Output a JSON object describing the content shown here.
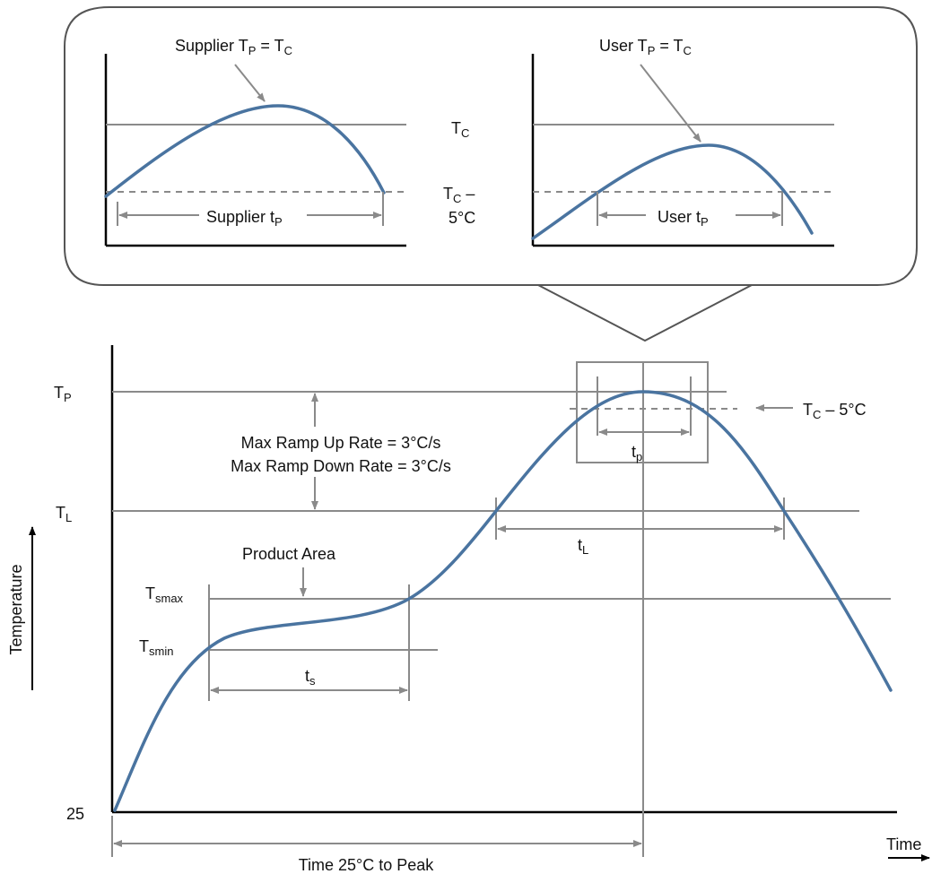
{
  "colors": {
    "curve": "#4a74a0",
    "reference_line": "#8a8a8a",
    "axis": "#000000",
    "callout_border": "#555555"
  },
  "callout": {
    "supplier": {
      "title": {
        "base": "Supplier T",
        "sub1": "P",
        "mid": " = T",
        "sub2": "C"
      },
      "duration": {
        "base": "Supplier t",
        "sub": "P"
      }
    },
    "user": {
      "title": {
        "base": "User T",
        "sub1": "P",
        "mid": " = T",
        "sub2": "C"
      },
      "duration": {
        "base": "User t",
        "sub": "P"
      }
    },
    "tc_label": {
      "base": "T",
      "sub": "C"
    },
    "tc_minus_label": {
      "line1_base": "T",
      "line1_sub": "C",
      "line1_suffix": " –",
      "line2": "5°C"
    }
  },
  "main": {
    "y_axis_label": "Temperature",
    "x_axis_label": "Time",
    "levels": {
      "tp": {
        "base": "T",
        "sub": "P"
      },
      "tl": {
        "base": "T",
        "sub": "L"
      },
      "tsmax": {
        "base": "T",
        "sub": "smax"
      },
      "tsmin": {
        "base": "T",
        "sub": "smin"
      },
      "ambient": "25"
    },
    "ramp_rate": {
      "line1": "Max Ramp Up Rate = 3°C/s",
      "line2": "Max Ramp Down Rate = 3°C/s"
    },
    "product_area": "Product Area",
    "durations": {
      "tp": {
        "base": "t",
        "sub": "p"
      },
      "tl": {
        "base": "t",
        "sub": "L"
      },
      "ts": {
        "base": "t",
        "sub": "s"
      }
    },
    "tc_minus_5": {
      "base": "T",
      "sub": "C",
      "suffix": " – 5°C"
    },
    "time_to_peak": "Time 25°C to Peak"
  }
}
